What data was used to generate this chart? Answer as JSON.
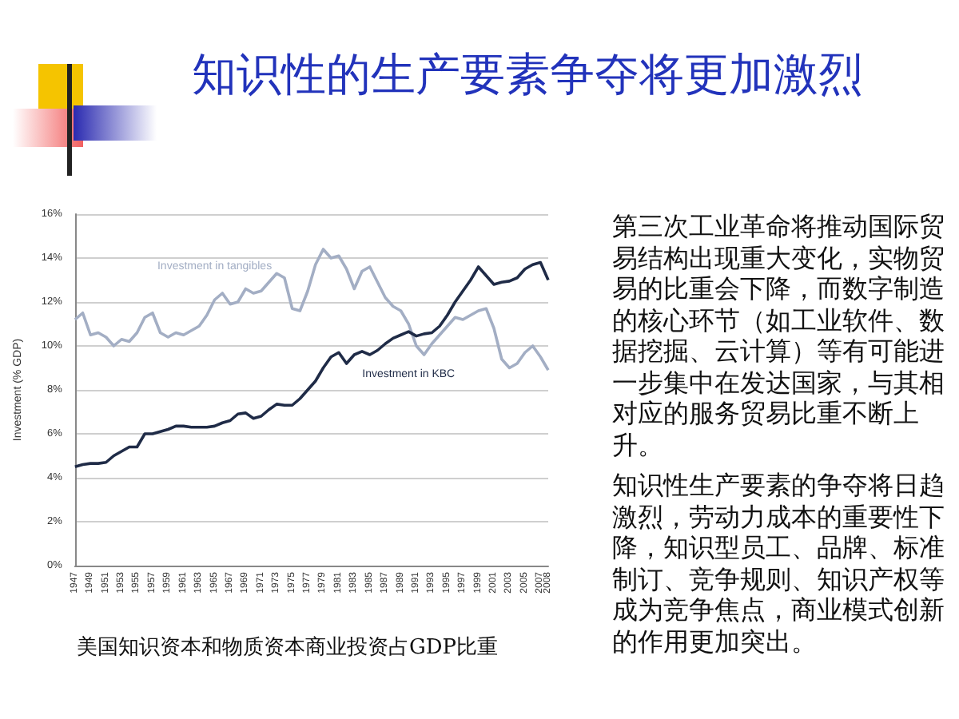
{
  "chart_data": {
    "type": "line",
    "title": "知识性的生产要素争夺将更加激烈",
    "ylabel": "Investment (% GDP)",
    "categories": [
      "1947",
      null,
      "1949",
      null,
      "1951",
      null,
      "1953",
      null,
      "1955",
      null,
      "1957",
      null,
      "1959",
      null,
      "1961",
      null,
      "1963",
      null,
      "1965",
      null,
      "1967",
      null,
      "1969",
      null,
      "1971",
      null,
      "1973",
      null,
      "1975",
      null,
      "1977",
      null,
      "1979",
      null,
      "1981",
      null,
      "1983",
      null,
      "1985",
      null,
      "1987",
      null,
      "1989",
      null,
      "1991",
      null,
      "1993",
      null,
      "1995",
      null,
      "1997",
      null,
      "1999",
      null,
      "2001",
      null,
      "2003",
      null,
      "2005",
      null,
      "2007",
      "2008"
    ],
    "series": [
      {
        "name": "Investment in tangibles",
        "color": "#a3aec4",
        "values": [
          11.2,
          11.5,
          10.5,
          10.6,
          10.4,
          10.0,
          10.3,
          10.2,
          10.6,
          11.3,
          11.5,
          10.6,
          10.4,
          10.6,
          10.5,
          10.7,
          10.9,
          11.4,
          12.1,
          12.4,
          11.9,
          12.0,
          12.6,
          12.4,
          12.5,
          12.9,
          13.3,
          13.1,
          11.7,
          11.6,
          12.5,
          13.7,
          14.4,
          14.0,
          14.1,
          13.5,
          12.6,
          13.4,
          13.6,
          12.9,
          12.2,
          11.8,
          11.6,
          11.0,
          10.0,
          9.6,
          10.1,
          10.5,
          10.9,
          11.3,
          11.2,
          11.4,
          11.6,
          11.7,
          10.8,
          9.4,
          9.0,
          9.2,
          9.7,
          10.0,
          9.5,
          8.9
        ]
      },
      {
        "name": "Investment in KBC",
        "color": "#1f2b47",
        "values": [
          4.5,
          4.6,
          4.65,
          4.65,
          4.7,
          5.0,
          5.2,
          5.4,
          5.4,
          6.0,
          6.0,
          6.1,
          6.2,
          6.35,
          6.35,
          6.3,
          6.3,
          6.3,
          6.35,
          6.5,
          6.6,
          6.9,
          6.95,
          6.7,
          6.8,
          7.1,
          7.35,
          7.3,
          7.3,
          7.6,
          8.0,
          8.4,
          9.0,
          9.5,
          9.7,
          9.2,
          9.6,
          9.75,
          9.6,
          9.8,
          10.1,
          10.35,
          10.5,
          10.65,
          10.45,
          10.55,
          10.6,
          10.9,
          11.4,
          12.0,
          12.5,
          13.0,
          13.6,
          13.2,
          12.8,
          12.9,
          12.95,
          13.1,
          13.5,
          13.7,
          13.8,
          13.0
        ]
      }
    ],
    "ylim": [
      0,
      16
    ],
    "yticks": [
      {
        "value": 0,
        "label": "0%"
      },
      {
        "value": 2,
        "label": "2%"
      },
      {
        "value": 4,
        "label": "4%"
      },
      {
        "value": 6,
        "label": "6%"
      },
      {
        "value": 8,
        "label": "8%"
      },
      {
        "value": 10,
        "label": "10%"
      },
      {
        "value": 12,
        "label": "12%"
      },
      {
        "value": 14,
        "label": "14%"
      },
      {
        "value": 16,
        "label": "16%"
      }
    ],
    "grid": "y",
    "marker": "none",
    "annotations": [
      "第三次工业革命将推动国际贸易结构出现重大变化，实物贸易的比重会下降，而数字制造的核心环节（如工业软件、数据挖掘、云计算）等有可能进一步集中在发达国家，与其相对应的服务贸易比重不断上升。",
      "知识性生产要素的争夺将日趋激烈，劳动力成本的重要性下降，知识型员工、品牌、标准制订、竞争规则、知识产权等成为竞争焦点，商业模式创新的作用更加突出。",
      "美国知识资本和物质资本商业投资占GDP比重"
    ]
  }
}
